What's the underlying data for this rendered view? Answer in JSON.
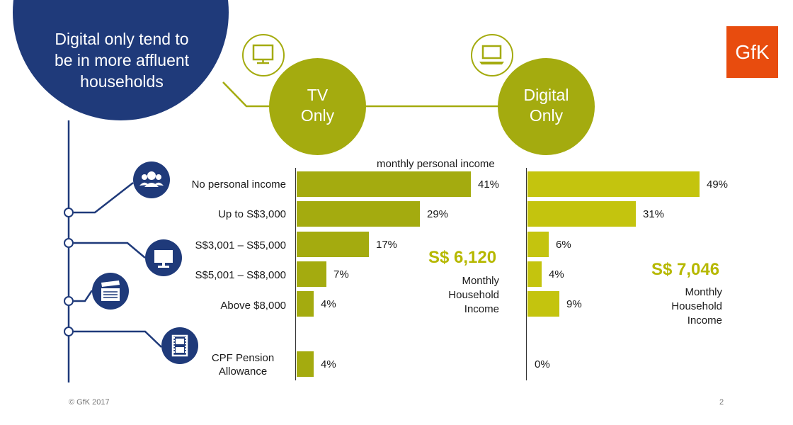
{
  "headline": "Digital only tend to be in more affluent households",
  "panels": {
    "tv": {
      "label": "TV Only"
    },
    "digital": {
      "label": "Digital Only"
    }
  },
  "colors": {
    "navy": "#1f3a7a",
    "olive": "#a4ab0f",
    "lime": "#c4c40e",
    "gfk": "#e84c0e",
    "income_value": "#b6b800"
  },
  "icons": [
    "people-icon",
    "tv-icon",
    "clapperboard-icon",
    "film-strip-icon",
    "tv-outline-icon",
    "laptop-outline-icon"
  ],
  "logo": "GfK",
  "footer": {
    "copyright": "© GfK  2017",
    "page_number": "2"
  },
  "chart_data": {
    "type": "bar",
    "orientation": "horizontal",
    "title": "monthly personal income",
    "categories": [
      "No personal income",
      "Up to S$3,000",
      "S$3,001 – S$5,000",
      "S$5,001 – S$8,000",
      "Above $8,000",
      "CPF Pension Allowance"
    ],
    "series": [
      {
        "name": "TV Only",
        "values": [
          41,
          29,
          17,
          7,
          4,
          4
        ],
        "labels": [
          "41%",
          "29%",
          "17%",
          "7%",
          "4%",
          "4%"
        ]
      },
      {
        "name": "Digital Only",
        "values": [
          49,
          31,
          6,
          4,
          9,
          0
        ],
        "labels": [
          "49%",
          "31%",
          "6%",
          "4%",
          "9%",
          "0%"
        ]
      }
    ],
    "annotations": [
      {
        "panel": "TV Only",
        "value": "S$ 6,120",
        "label": "Monthly Household Income"
      },
      {
        "panel": "Digital Only",
        "value": "S$ 7,046",
        "label": "Monthly Household Income"
      }
    ],
    "unit": "%"
  }
}
